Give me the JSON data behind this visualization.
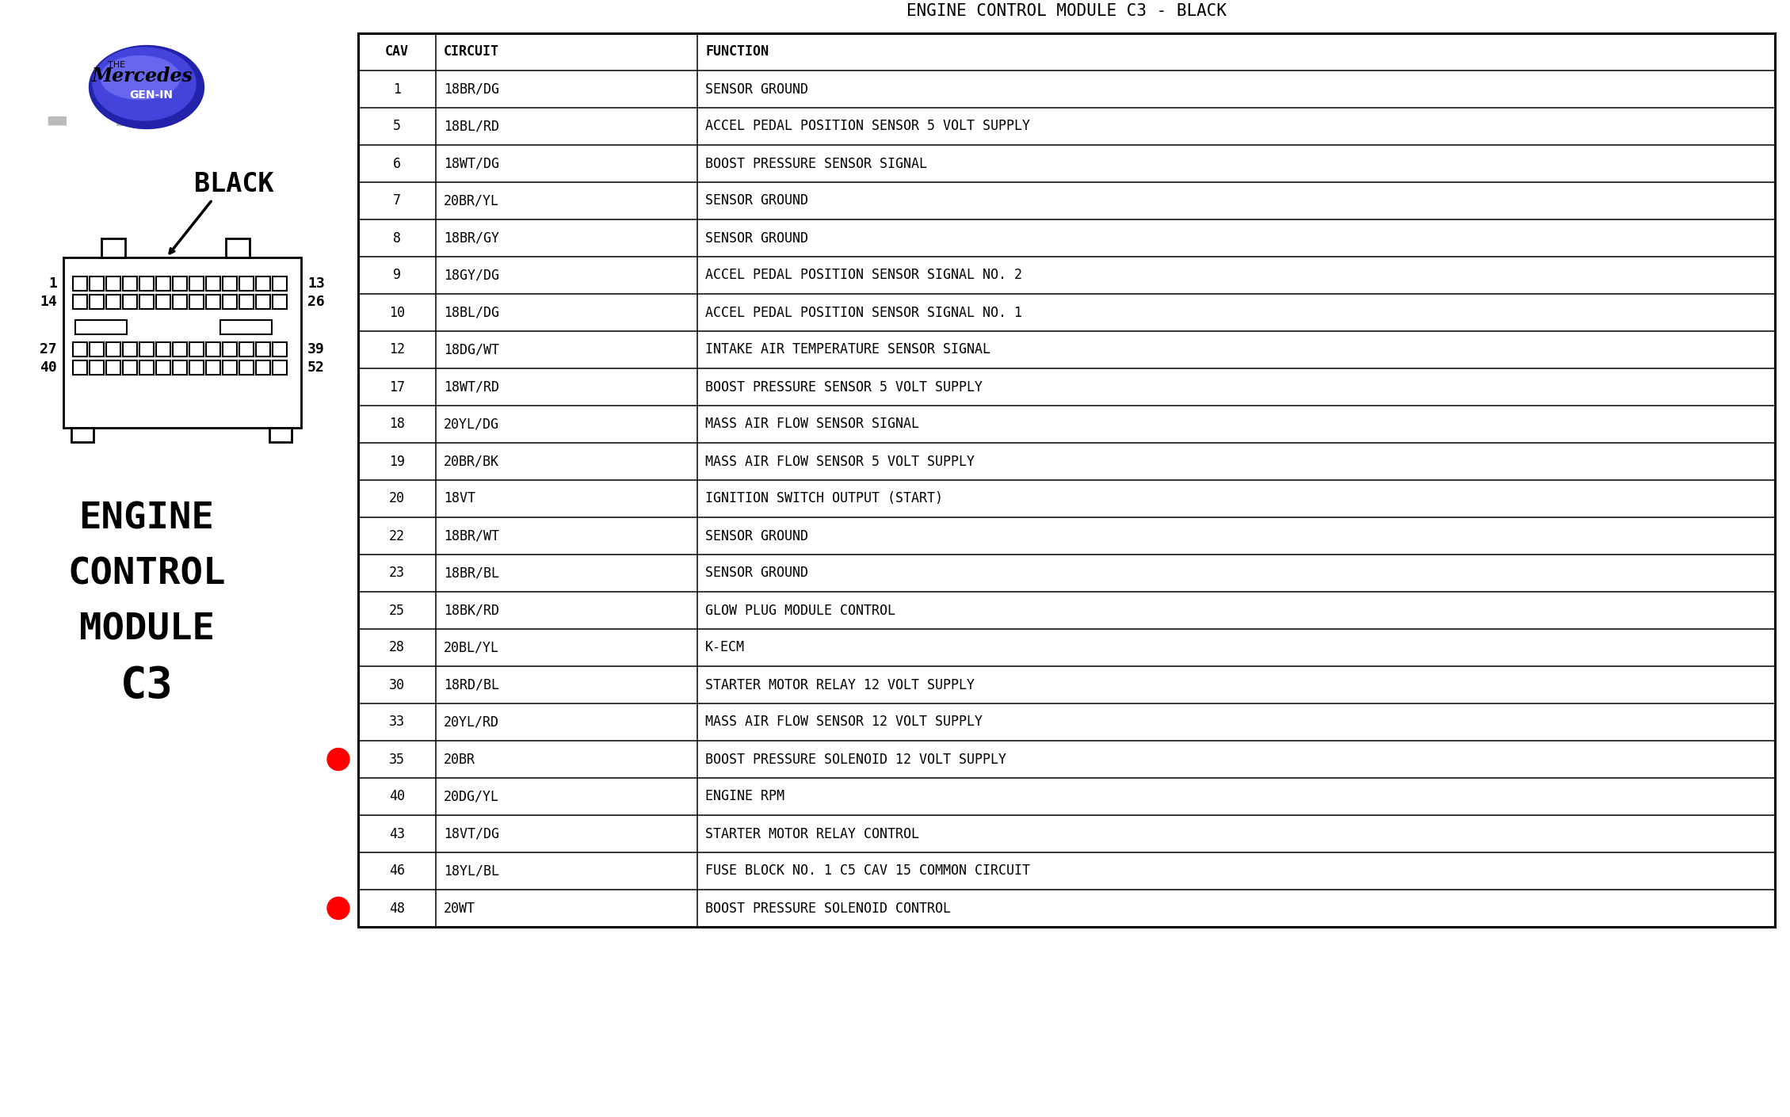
{
  "title": "ENGINE CONTROL MODULE C3 - BLACK",
  "table_headers": [
    "CAV",
    "CIRCUIT",
    "FUNCTION"
  ],
  "table_data": [
    [
      "1",
      "18BR/DG",
      "SENSOR GROUND"
    ],
    [
      "5",
      "18BL/RD",
      "ACCEL PEDAL POSITION SENSOR 5 VOLT SUPPLY"
    ],
    [
      "6",
      "18WT/DG",
      "BOOST PRESSURE SENSOR SIGNAL"
    ],
    [
      "7",
      "20BR/YL",
      "SENSOR GROUND"
    ],
    [
      "8",
      "18BR/GY",
      "SENSOR GROUND"
    ],
    [
      "9",
      "18GY/DG",
      "ACCEL PEDAL POSITION SENSOR SIGNAL NO. 2"
    ],
    [
      "10",
      "18BL/DG",
      "ACCEL PEDAL POSITION SENSOR SIGNAL NO. 1"
    ],
    [
      "12",
      "18DG/WT",
      "INTAKE AIR TEMPERATURE SENSOR SIGNAL"
    ],
    [
      "17",
      "18WT/RD",
      "BOOST PRESSURE SENSOR 5 VOLT SUPPLY"
    ],
    [
      "18",
      "20YL/DG",
      "MASS AIR FLOW SENSOR SIGNAL"
    ],
    [
      "19",
      "20BR/BK",
      "MASS AIR FLOW SENSOR 5 VOLT SUPPLY"
    ],
    [
      "20",
      "18VT",
      "IGNITION SWITCH OUTPUT (START)"
    ],
    [
      "22",
      "18BR/WT",
      "SENSOR GROUND"
    ],
    [
      "23",
      "18BR/BL",
      "SENSOR GROUND"
    ],
    [
      "25",
      "18BK/RD",
      "GLOW PLUG MODULE CONTROL"
    ],
    [
      "28",
      "20BL/YL",
      "K-ECM"
    ],
    [
      "30",
      "18RD/BL",
      "STARTER MOTOR RELAY 12 VOLT SUPPLY"
    ],
    [
      "33",
      "20YL/RD",
      "MASS AIR FLOW SENSOR 12 VOLT SUPPLY"
    ],
    [
      "35",
      "20BR",
      "BOOST PRESSURE SOLENOID 12 VOLT SUPPLY"
    ],
    [
      "40",
      "20DG/YL",
      "ENGINE RPM"
    ],
    [
      "43",
      "18VT/DG",
      "STARTER MOTOR RELAY CONTROL"
    ],
    [
      "46",
      "18YL/BL",
      "FUSE BLOCK NO. 1 C5 CAV 15 COMMON CIRCUIT"
    ],
    [
      "48",
      "20WT",
      "BOOST PRESSURE SOLENOID CONTROL"
    ]
  ],
  "red_dot_rows": [
    18,
    22
  ],
  "connector_numbers_left": [
    "1",
    "14",
    "27",
    "40"
  ],
  "connector_numbers_right": [
    "13",
    "26",
    "39",
    "52"
  ],
  "module_lines": [
    "ENGINE",
    "CONTROL",
    "MODULE",
    "C3"
  ],
  "bg_color": "#ffffff"
}
